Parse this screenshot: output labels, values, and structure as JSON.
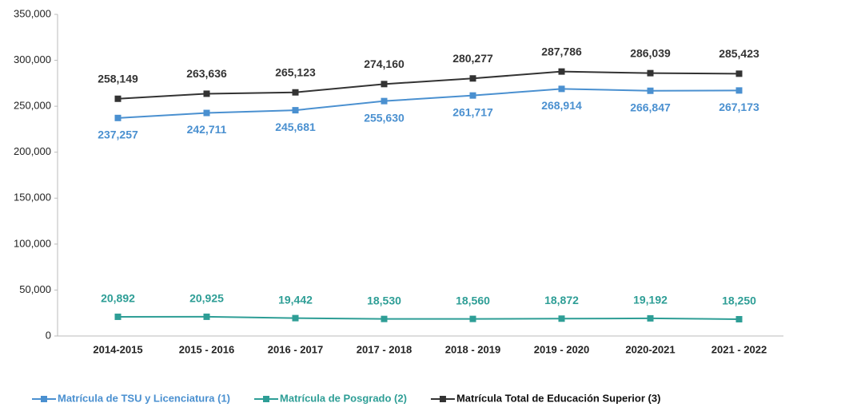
{
  "chart_data": {
    "type": "line",
    "categories": [
      "2014-2015",
      "2015 - 2016",
      "2016 - 2017",
      "2017 - 2018",
      "2018 - 2019",
      "2019 - 2020",
      "2020-2021",
      "2021 - 2022"
    ],
    "series": [
      {
        "name": "Matrícula de TSU y Licenciatura (1)",
        "color": "#4a90d0",
        "values": [
          237257,
          242711,
          245681,
          255630,
          261717,
          268914,
          266847,
          267173
        ],
        "value_labels": [
          "237,257",
          "242,711",
          "245,681",
          "255,630",
          "261,717",
          "268,914",
          "266,847",
          "267,173"
        ]
      },
      {
        "name": "Matrícula de Posgrado (2)",
        "color": "#2e9e96",
        "values": [
          20892,
          20925,
          19442,
          18530,
          18560,
          18872,
          19192,
          18250
        ],
        "value_labels": [
          "20,892",
          "20,925",
          "19,442",
          "18,530",
          "18,560",
          "18,872",
          "19,192",
          "18,250"
        ]
      },
      {
        "name": "Matrícula Total de Educación Superior (3)",
        "color": "#333333",
        "values": [
          258149,
          263636,
          265123,
          274160,
          280277,
          287786,
          286039,
          285423
        ],
        "value_labels": [
          "258,149",
          "263,636",
          "265,123",
          "274,160",
          "280,277",
          "287,786",
          "286,039",
          "285,423"
        ]
      }
    ],
    "ylim": [
      0,
      350000
    ],
    "yticks": [
      0,
      {
        "value": 50000,
        "label": "50,000"
      },
      {
        "value": 100000,
        "label": "100,000"
      },
      {
        "value": 150000,
        "label": "150,000"
      },
      {
        "value": 200000,
        "label": "200,000"
      },
      {
        "value": 250000,
        "label": "250,000"
      },
      {
        "value": 300000,
        "label": "300,000"
      },
      {
        "value": 350000,
        "label": "350,000"
      }
    ],
    "grid": false,
    "legend": "bottom"
  }
}
